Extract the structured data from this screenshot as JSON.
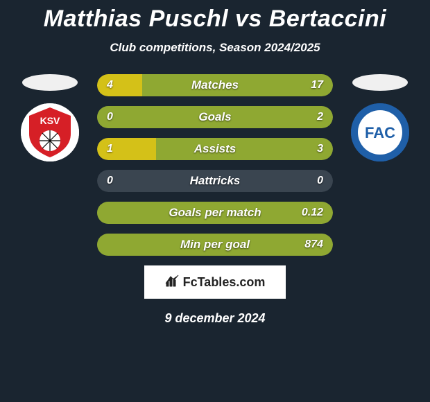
{
  "title": "Matthias Puschl vs Bertaccini",
  "subtitle": "Club competitions, Season 2024/2025",
  "date": "9 december 2024",
  "footer_logo_text": "FcTables.com",
  "colors": {
    "background": "#1a2530",
    "bar_track": "#3a4550",
    "bar_left": "#d4c118",
    "bar_right": "#8fa832",
    "text": "#ffffff"
  },
  "player_left": {
    "flag_color": "#f0f0f0",
    "badge_bg": "#ffffff",
    "badge_inner": "#d61f26",
    "badge_text": "KSV",
    "badge_text_color": "#ffffff"
  },
  "player_right": {
    "flag_color": "#f0f0f0",
    "badge_bg": "#1f5fa8",
    "badge_inner": "#ffffff",
    "badge_text": "FAC",
    "badge_text_color": "#1f5fa8"
  },
  "stats": [
    {
      "label": "Matches",
      "left_val": "4",
      "right_val": "17",
      "left_pct": 19.0,
      "right_pct": 81.0
    },
    {
      "label": "Goals",
      "left_val": "0",
      "right_val": "2",
      "left_pct": 0.0,
      "right_pct": 100.0
    },
    {
      "label": "Assists",
      "left_val": "1",
      "right_val": "3",
      "left_pct": 25.0,
      "right_pct": 75.0
    },
    {
      "label": "Hattricks",
      "left_val": "0",
      "right_val": "0",
      "left_pct": 0.0,
      "right_pct": 0.0
    },
    {
      "label": "Goals per match",
      "left_val": "",
      "right_val": "0.12",
      "left_pct": 0.0,
      "right_pct": 100.0
    },
    {
      "label": "Min per goal",
      "left_val": "",
      "right_val": "874",
      "left_pct": 0.0,
      "right_pct": 100.0
    }
  ]
}
